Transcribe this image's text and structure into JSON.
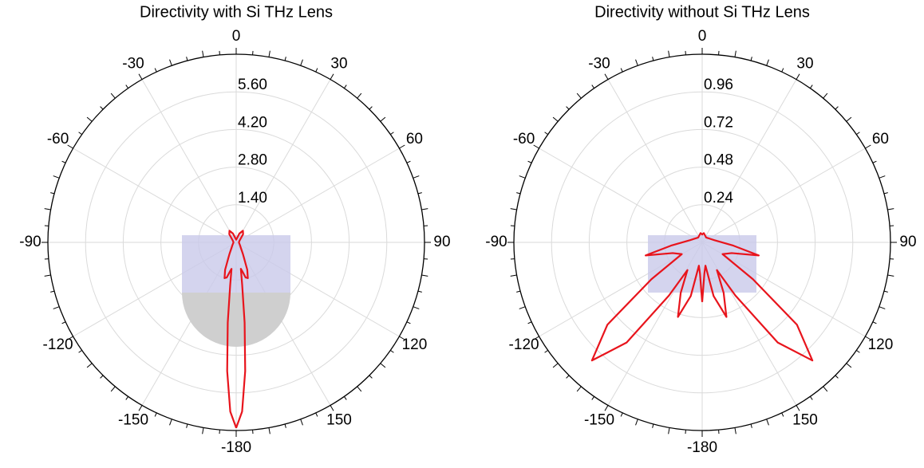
{
  "chart_data": [
    {
      "type": "polar",
      "title": "Directivity with Si THz Lens",
      "rlim": [
        0,
        7
      ],
      "rticks": [
        {
          "value": 1.4,
          "label": "1.40"
        },
        {
          "value": 2.8,
          "label": "2.80"
        },
        {
          "value": 4.2,
          "label": "4.20"
        },
        {
          "value": 5.6,
          "label": "5.60"
        }
      ],
      "thetaticks": [
        0,
        30,
        60,
        90,
        120,
        150,
        -180,
        -150,
        -120,
        -90,
        -60,
        -30
      ],
      "grid": true,
      "series": [
        {
          "color": "#e8141c",
          "theta": [
            -180,
            -178,
            -176,
            -174,
            -172,
            -170,
            -168,
            -165,
            -162,
            -158,
            -150,
            -120,
            -90,
            -60,
            -40,
            -30,
            -20,
            -10,
            0,
            10,
            20,
            30,
            40,
            60,
            90,
            120,
            150,
            158,
            162,
            165,
            168,
            170,
            172,
            174,
            176,
            178,
            180
          ],
          "r": [
            6.9,
            6.3,
            4.8,
            3.0,
            1.6,
            1.0,
            1.1,
            1.35,
            1.4,
            1.1,
            0.5,
            0.15,
            0.1,
            0.15,
            0.4,
            0.5,
            0.35,
            0.15,
            0.1,
            0.15,
            0.35,
            0.5,
            0.4,
            0.15,
            0.1,
            0.15,
            0.5,
            1.1,
            1.4,
            1.35,
            1.1,
            1.0,
            1.6,
            3.0,
            4.8,
            6.3,
            6.9
          ]
        }
      ]
    },
    {
      "type": "polar",
      "title": "Directivity without Si THz Lens",
      "rlim": [
        0,
        1.2
      ],
      "rticks": [
        0.24,
        0.48,
        0.72,
        0.96
      ],
      "thetaticks": [
        0,
        30,
        60,
        90,
        120,
        150,
        -180,
        -150,
        -120,
        -90,
        -60,
        -30
      ],
      "grid": true,
      "series": [
        {
          "color": "#e8141c",
          "theta": [
            -180,
            -176,
            -172,
            -168,
            -162,
            -157,
            -152,
            -148,
            -143,
            -137,
            -131,
            -126,
            -120,
            -110,
            -103,
            -96,
            -80,
            -40,
            -10,
            0,
            10,
            40,
            80,
            96,
            103,
            110,
            120,
            126,
            131,
            137,
            143,
            148,
            152,
            157,
            162,
            168,
            172,
            176,
            180
          ],
          "r": [
            0.38,
            0.2,
            0.15,
            0.35,
            0.5,
            0.35,
            0.2,
            0.4,
            0.8,
            1.03,
            0.8,
            0.4,
            0.15,
            0.2,
            0.37,
            0.2,
            0.08,
            0.04,
            0.06,
            0.05,
            0.06,
            0.04,
            0.08,
            0.2,
            0.37,
            0.2,
            0.15,
            0.4,
            0.8,
            1.03,
            0.8,
            0.4,
            0.2,
            0.35,
            0.5,
            0.35,
            0.15,
            0.2,
            0.38
          ]
        }
      ]
    }
  ]
}
